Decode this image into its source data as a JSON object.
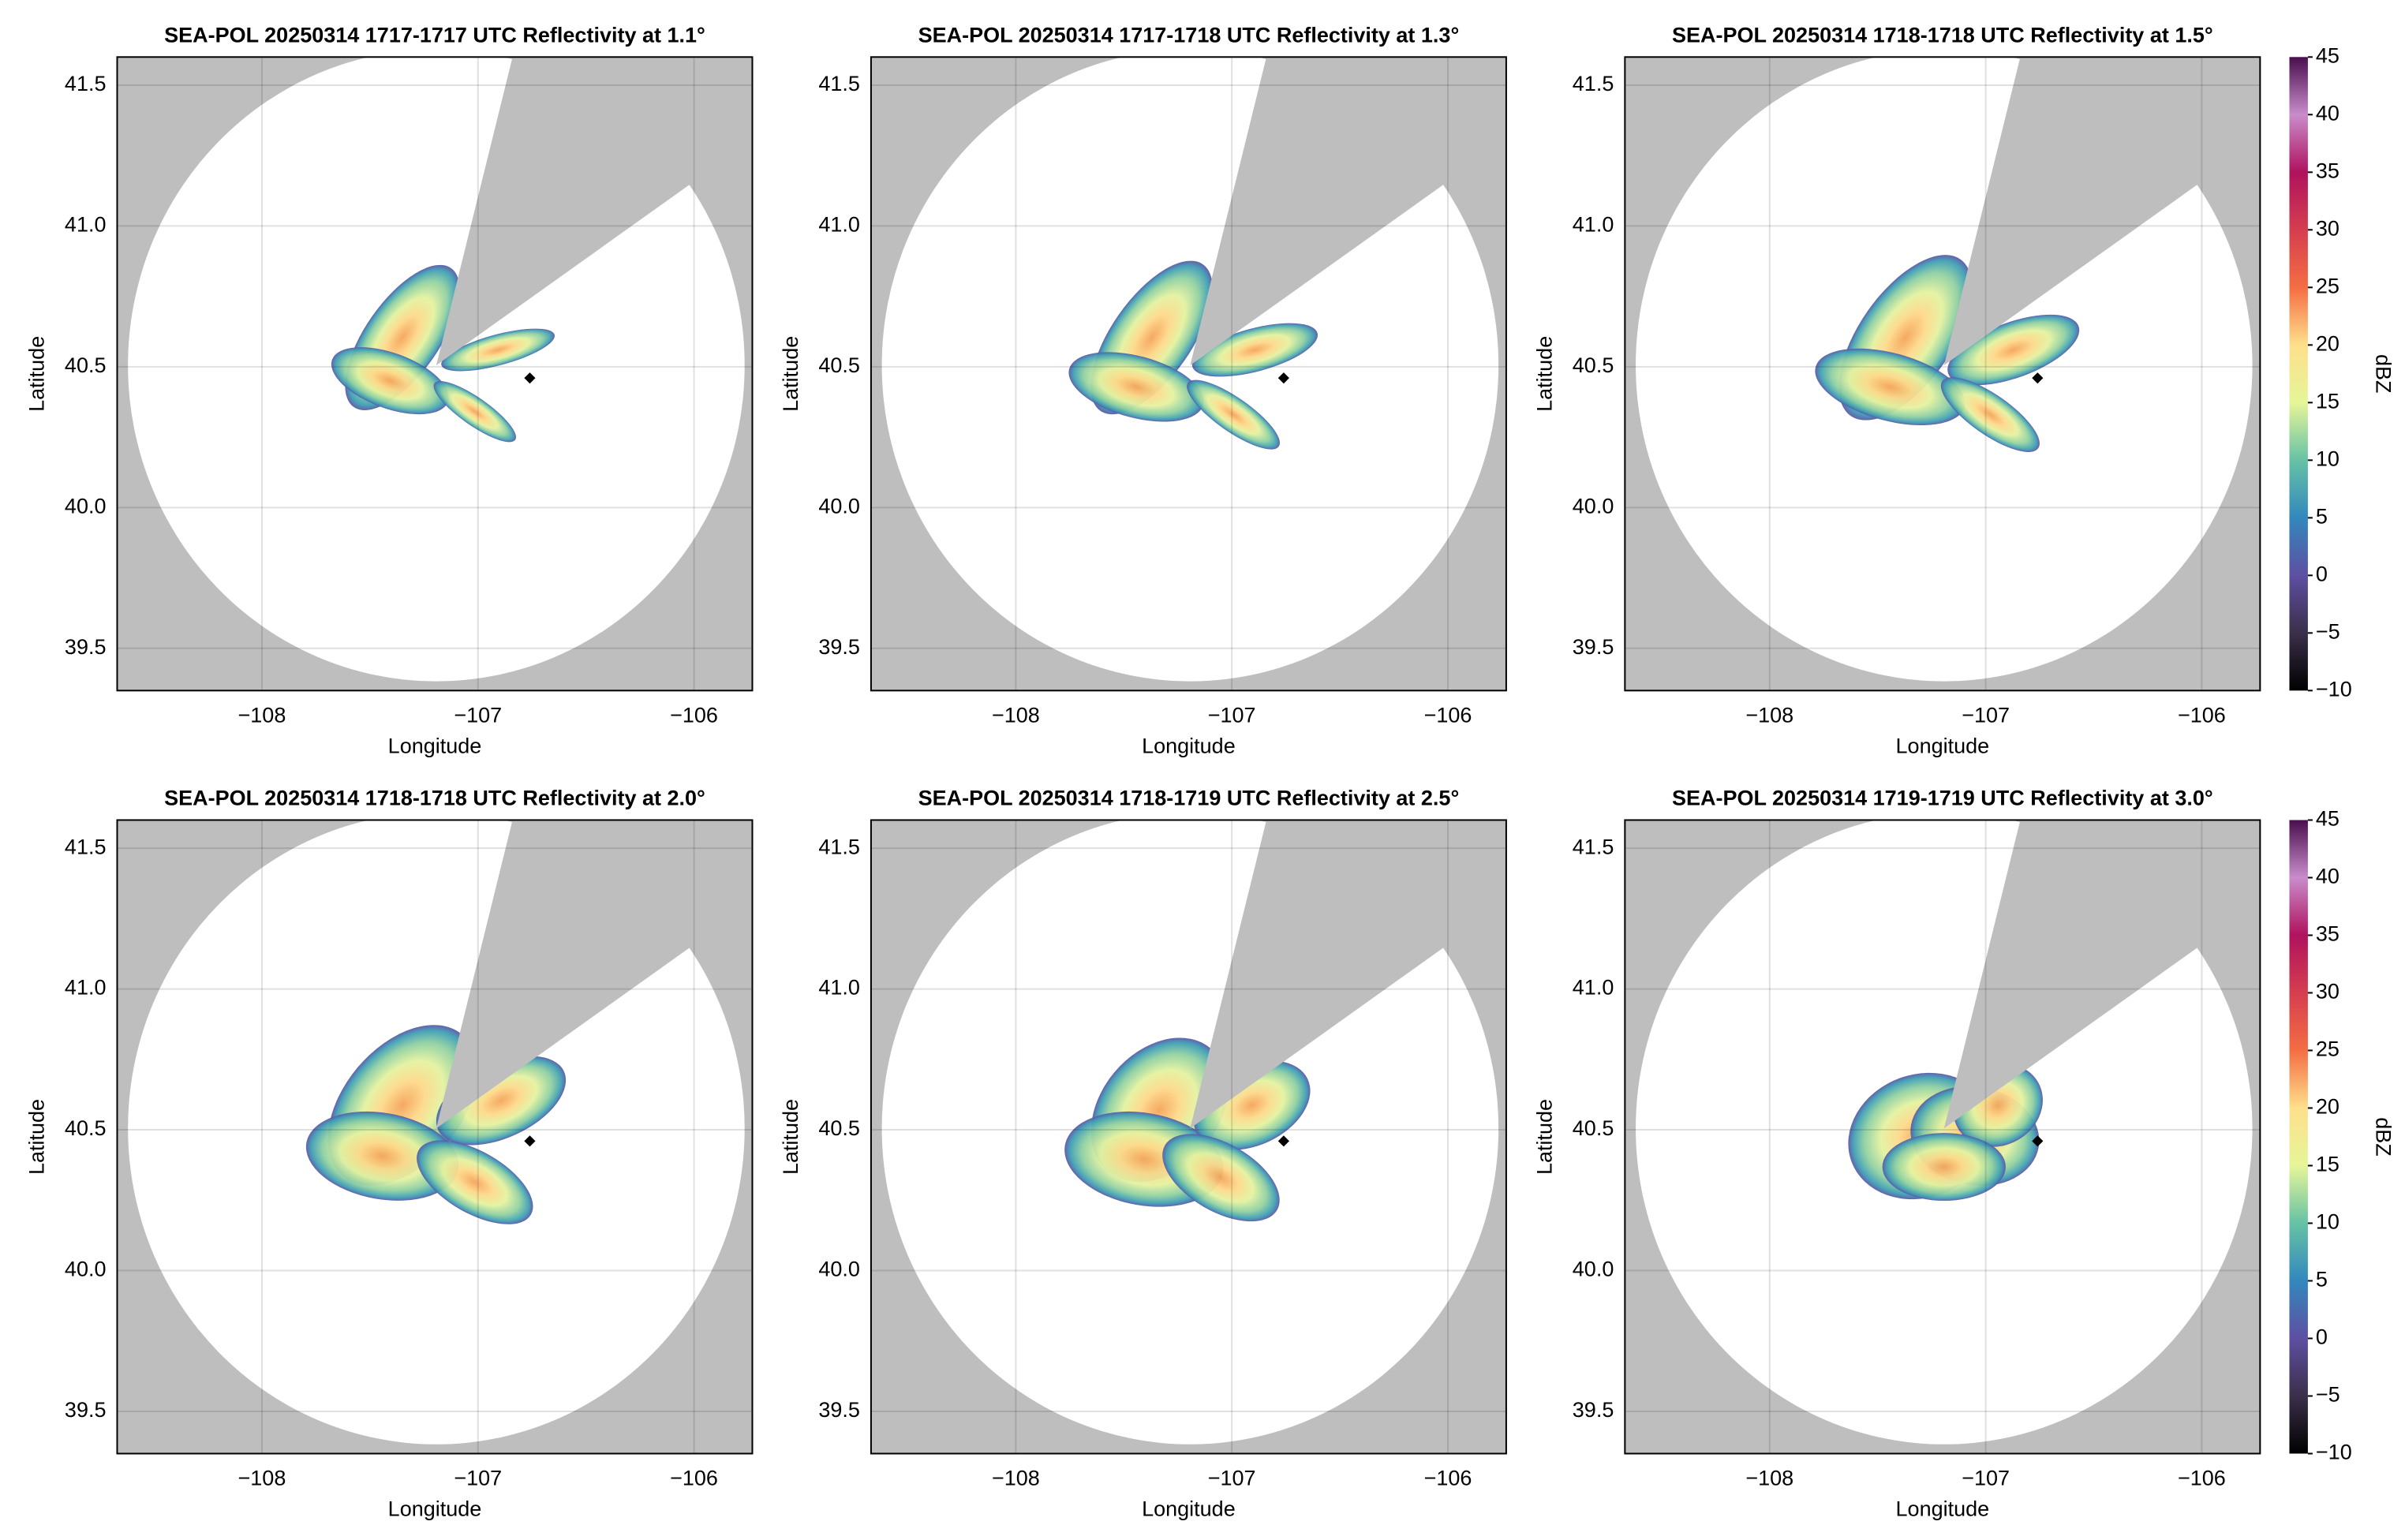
{
  "chart_data": [
    {
      "type": "radar",
      "title": "SEA-POL 20250314 1717-1717 UTC Reflectivity at 1.1°",
      "xlabel": "Longitude",
      "ylabel": "Latitude",
      "xlim": [
        -108.67,
        -105.73
      ],
      "ylim": [
        39.35,
        41.6
      ],
      "xticks": [
        {
          "value": -108,
          "label": "−108"
        },
        {
          "value": -107,
          "label": "−107"
        },
        {
          "value": -106,
          "label": "−106"
        }
      ],
      "yticks": [
        39.5,
        {
          "value": 40,
          "label": "40.0"
        },
        40.5,
        {
          "value": 41,
          "label": "41.0"
        },
        41.5
      ],
      "grid": true,
      "points": {
        "x": [
          -106.76
        ],
        "y": [
          40.46
        ]
      }
    },
    {
      "type": "radar",
      "title": "SEA-POL 20250314 1717-1718 UTC Reflectivity at 1.3°",
      "xlabel": "Longitude",
      "ylabel": "Latitude",
      "xlim": [
        -108.67,
        -105.73
      ],
      "ylim": [
        39.35,
        41.6
      ],
      "xticks": [
        {
          "value": -108,
          "label": "−108"
        },
        {
          "value": -107,
          "label": "−107"
        },
        {
          "value": -106,
          "label": "−106"
        }
      ],
      "yticks": [
        39.5,
        {
          "value": 40,
          "label": "40.0"
        },
        40.5,
        {
          "value": 41,
          "label": "41.0"
        },
        41.5
      ],
      "grid": true,
      "points": {
        "x": [
          -106.76
        ],
        "y": [
          40.46
        ]
      }
    },
    {
      "type": "radar",
      "title": "SEA-POL 20250314 1718-1718 UTC Reflectivity at 1.5°",
      "xlabel": "Longitude",
      "ylabel": "Latitude",
      "xlim": [
        -108.67,
        -105.73
      ],
      "ylim": [
        39.35,
        41.6
      ],
      "xticks": [
        {
          "value": -108,
          "label": "−108"
        },
        {
          "value": -107,
          "label": "−107"
        },
        {
          "value": -106,
          "label": "−106"
        }
      ],
      "yticks": [
        39.5,
        {
          "value": 40,
          "label": "40.0"
        },
        40.5,
        {
          "value": 41,
          "label": "41.0"
        },
        41.5
      ],
      "grid": true,
      "points": {
        "x": [
          -106.76
        ],
        "y": [
          40.46
        ]
      },
      "colorbar": {
        "label": "dBZ",
        "lim": [
          -10,
          45
        ],
        "ticks": [
          {
            "value": -10,
            "label": "−10"
          },
          {
            "value": -5,
            "label": "−5"
          },
          0,
          5,
          10,
          15,
          20,
          25,
          30,
          35,
          40,
          45
        ],
        "colors": [
          "#000000",
          "#3b2f4a",
          "#5e4fa2",
          "#3288bd",
          "#66c2a5",
          "#e6f598",
          "#fee08b",
          "#f46d43",
          "#d53e4f",
          "#b0125e",
          "#c98ccb",
          "#4a0e4e"
        ]
      }
    },
    {
      "type": "radar",
      "title": "SEA-POL 20250314 1718-1718 UTC Reflectivity at 2.0°",
      "xlabel": "Longitude",
      "ylabel": "Latitude",
      "xlim": [
        -108.67,
        -105.73
      ],
      "ylim": [
        39.35,
        41.6
      ],
      "xticks": [
        {
          "value": -108,
          "label": "−108"
        },
        {
          "value": -107,
          "label": "−107"
        },
        {
          "value": -106,
          "label": "−106"
        }
      ],
      "yticks": [
        39.5,
        {
          "value": 40,
          "label": "40.0"
        },
        40.5,
        {
          "value": 41,
          "label": "41.0"
        },
        41.5
      ],
      "grid": true,
      "points": {
        "x": [
          -106.76
        ],
        "y": [
          40.46
        ]
      }
    },
    {
      "type": "radar",
      "title": "SEA-POL 20250314 1718-1719 UTC Reflectivity at 2.5°",
      "xlabel": "Longitude",
      "ylabel": "Latitude",
      "xlim": [
        -108.67,
        -105.73
      ],
      "ylim": [
        39.35,
        41.6
      ],
      "xticks": [
        {
          "value": -108,
          "label": "−108"
        },
        {
          "value": -107,
          "label": "−107"
        },
        {
          "value": -106,
          "label": "−106"
        }
      ],
      "yticks": [
        39.5,
        {
          "value": 40,
          "label": "40.0"
        },
        40.5,
        {
          "value": 41,
          "label": "41.0"
        },
        41.5
      ],
      "grid": true,
      "points": {
        "x": [
          -106.76
        ],
        "y": [
          40.46
        ]
      }
    },
    {
      "type": "radar",
      "title": "SEA-POL 20250314 1719-1719 UTC Reflectivity at 3.0°",
      "xlabel": "Longitude",
      "ylabel": "Latitude",
      "xlim": [
        -108.67,
        -105.73
      ],
      "ylim": [
        39.35,
        41.6
      ],
      "xticks": [
        {
          "value": -108,
          "label": "−108"
        },
        {
          "value": -107,
          "label": "−107"
        },
        {
          "value": -106,
          "label": "−106"
        }
      ],
      "yticks": [
        39.5,
        {
          "value": 40,
          "label": "40.0"
        },
        40.5,
        {
          "value": 41,
          "label": "41.0"
        },
        41.5
      ],
      "grid": true,
      "points": {
        "x": [
          -106.76
        ],
        "y": [
          40.46
        ]
      },
      "colorbar": {
        "label": "dBZ",
        "lim": [
          -10,
          45
        ],
        "ticks": [
          {
            "value": -10,
            "label": "−10"
          },
          {
            "value": -5,
            "label": "−5"
          },
          0,
          5,
          10,
          15,
          20,
          25,
          30,
          35,
          40,
          45
        ],
        "colors": [
          "#000000",
          "#3b2f4a",
          "#5e4fa2",
          "#3288bd",
          "#66c2a5",
          "#e6f598",
          "#fee08b",
          "#f46d43",
          "#d53e4f",
          "#b0125e",
          "#c98ccb",
          "#4a0e4e"
        ]
      }
    }
  ]
}
